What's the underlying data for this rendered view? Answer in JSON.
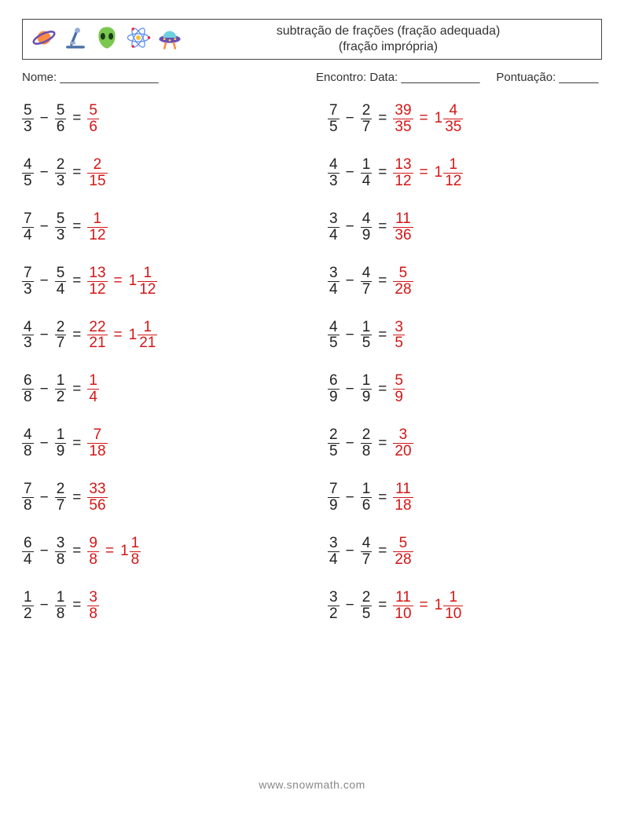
{
  "title_line1": "subtração de frações (fração adequada)",
  "title_line2": "(fração imprópria)",
  "label_name": "Nome: _______________",
  "label_meeting": "Encontro: Data: ____________",
  "label_score": "Pontuação: ______",
  "footer": "www.snowmath.com",
  "colors": {
    "text": "#333333",
    "answer": "#d41616",
    "border": "#444444",
    "footer": "#888888"
  },
  "font": {
    "family": "Comic Sans MS",
    "body_size": 19,
    "header_size": 16,
    "meta_size": 15
  },
  "left": [
    {
      "a": [
        5,
        3
      ],
      "b": [
        5,
        6
      ],
      "ans": [
        5,
        6
      ]
    },
    {
      "a": [
        4,
        5
      ],
      "b": [
        2,
        3
      ],
      "ans": [
        2,
        15
      ]
    },
    {
      "a": [
        7,
        4
      ],
      "b": [
        5,
        3
      ],
      "ans": [
        1,
        12
      ]
    },
    {
      "a": [
        7,
        3
      ],
      "b": [
        5,
        4
      ],
      "ans": [
        13,
        12
      ],
      "mixed": [
        1,
        1,
        12
      ]
    },
    {
      "a": [
        4,
        3
      ],
      "b": [
        2,
        7
      ],
      "ans": [
        22,
        21
      ],
      "mixed": [
        1,
        1,
        21
      ]
    },
    {
      "a": [
        6,
        8
      ],
      "b": [
        1,
        2
      ],
      "ans": [
        1,
        4
      ]
    },
    {
      "a": [
        4,
        8
      ],
      "b": [
        1,
        9
      ],
      "ans": [
        7,
        18
      ]
    },
    {
      "a": [
        7,
        8
      ],
      "b": [
        2,
        7
      ],
      "ans": [
        33,
        56
      ]
    },
    {
      "a": [
        6,
        4
      ],
      "b": [
        3,
        8
      ],
      "ans": [
        9,
        8
      ],
      "mixed": [
        1,
        1,
        8
      ]
    },
    {
      "a": [
        1,
        2
      ],
      "b": [
        1,
        8
      ],
      "ans": [
        3,
        8
      ]
    }
  ],
  "right": [
    {
      "a": [
        7,
        5
      ],
      "b": [
        2,
        7
      ],
      "ans": [
        39,
        35
      ],
      "mixed": [
        1,
        4,
        35
      ]
    },
    {
      "a": [
        4,
        3
      ],
      "b": [
        1,
        4
      ],
      "ans": [
        13,
        12
      ],
      "mixed": [
        1,
        1,
        12
      ]
    },
    {
      "a": [
        3,
        4
      ],
      "b": [
        4,
        9
      ],
      "ans": [
        11,
        36
      ]
    },
    {
      "a": [
        3,
        4
      ],
      "b": [
        4,
        7
      ],
      "ans": [
        5,
        28
      ]
    },
    {
      "a": [
        4,
        5
      ],
      "b": [
        1,
        5
      ],
      "ans": [
        3,
        5
      ]
    },
    {
      "a": [
        6,
        9
      ],
      "b": [
        1,
        9
      ],
      "ans": [
        5,
        9
      ]
    },
    {
      "a": [
        2,
        5
      ],
      "b": [
        2,
        8
      ],
      "ans": [
        3,
        20
      ]
    },
    {
      "a": [
        7,
        9
      ],
      "b": [
        1,
        6
      ],
      "ans": [
        11,
        18
      ]
    },
    {
      "a": [
        3,
        4
      ],
      "b": [
        4,
        7
      ],
      "ans": [
        5,
        28
      ]
    },
    {
      "a": [
        3,
        2
      ],
      "b": [
        2,
        5
      ],
      "ans": [
        11,
        10
      ],
      "mixed": [
        1,
        1,
        10
      ]
    }
  ]
}
